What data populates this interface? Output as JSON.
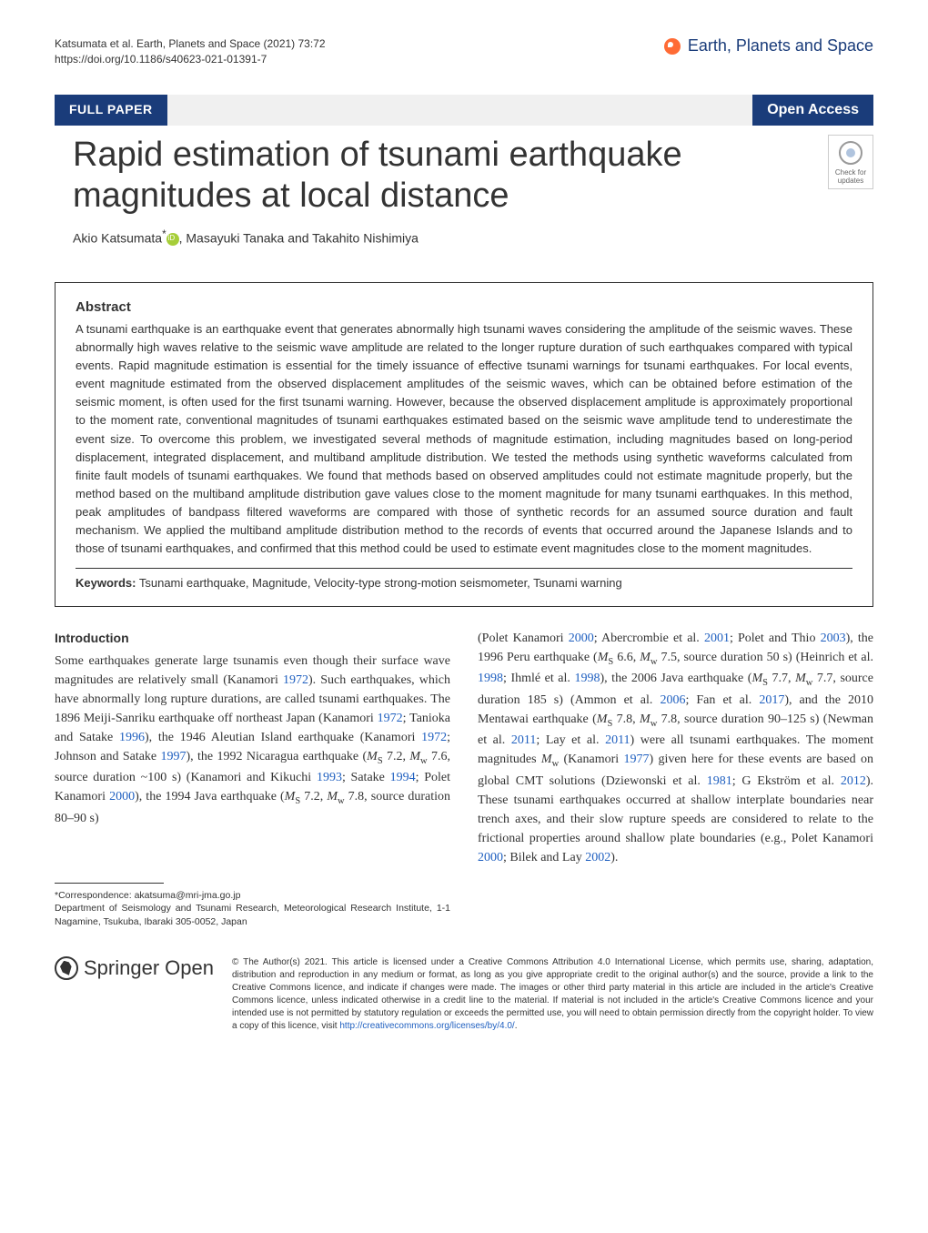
{
  "header": {
    "citation": "Katsumata et al. Earth, Planets and Space    (2021) 73:72",
    "doi": "https://doi.org/10.1186/s40623-021-01391-7",
    "journal": "Earth, Planets and Space"
  },
  "banner": {
    "article_type": "FULL PAPER",
    "open_access": "Open Access"
  },
  "title": "Rapid estimation of tsunami earthquake magnitudes at local distance",
  "check_updates_label": "Check for updates",
  "authors": {
    "a1_name": "Akio Katsumata",
    "a1_mark": "*",
    "a2_name": ", Masayuki Tanaka and Takahito Nishimiya"
  },
  "abstract": {
    "heading": "Abstract",
    "text": "A tsunami earthquake is an earthquake event that generates abnormally high tsunami waves considering the amplitude of the seismic waves. These abnormally high waves relative to the seismic wave amplitude are related to the longer rupture duration of such earthquakes compared with typical events. Rapid magnitude estimation is essential for the timely issuance of effective tsunami warnings for tsunami earthquakes. For local events, event magnitude estimated from the observed displacement amplitudes of the seismic waves, which can be obtained before estimation of the seismic moment, is often used for the first tsunami warning. However, because the observed displacement amplitude is approximately proportional to the moment rate, conventional magnitudes of tsunami earthquakes estimated based on the seismic wave amplitude tend to underestimate the event size. To overcome this problem, we investigated several methods of magnitude estimation, including magnitudes based on long-period displacement, integrated displacement, and multiband amplitude distribution. We tested the methods using synthetic waveforms calculated from finite fault models of tsunami earthquakes. We found that methods based on observed amplitudes could not estimate magnitude properly, but the method based on the multiband amplitude distribution gave values close to the moment magnitude for many tsunami earthquakes. In this method, peak amplitudes of bandpass filtered waveforms are compared with those of synthetic records for an assumed source duration and fault mechanism. We applied the multiband amplitude distribution method to the records of events that occurred around the Japanese Islands and to those of tsunami earthquakes, and confirmed that this method could be used to estimate event magnitudes close to the moment magnitudes.",
    "keywords_label": "Keywords:",
    "keywords": "Tsunami earthquake, Magnitude, Velocity-type strong-motion seismometer, Tsunami warning"
  },
  "body": {
    "intro_heading": "Introduction",
    "col1_p1a": "Some earthquakes generate large tsunamis even though their surface wave magnitudes are relatively small (Kanamori ",
    "col1_r1": "1972",
    "col1_p1b": "). Such earthquakes, which have abnormally long rupture durations, are called tsunami earthquakes. The 1896 Meiji-Sanriku earthquake off northeast Japan (Kanamori ",
    "col1_r2": "1972",
    "col1_p1c": "; Tanioka and Satake ",
    "col1_r3": "1996",
    "col1_p1d": "), the 1946 Aleutian Island earthquake (Kanamori ",
    "col1_r4": "1972",
    "col1_p1e": "; Johnson and Satake ",
    "col1_r5": "1997",
    "col1_p1f": "), the 1992 Nicaragua earthquake (",
    "col1_ms1": "M",
    "col1_ms1sub": "S",
    "col1_ms1v": " 7.2, ",
    "col1_mw1": "M",
    "col1_mw1sub": "w",
    "col1_mw1v": " 7.6, source duration ~100 s) (Kanamori and Kikuchi ",
    "col1_r6": "1993",
    "col1_p1g": "; Satake ",
    "col1_r7": "1994",
    "col1_p1h": "; Polet Kanamori ",
    "col1_r8": "2000",
    "col1_p1i": "), the 1994 Java earthquake (",
    "col1_ms2v": " 7.2, ",
    "col1_mw2v": " 7.8, source duration 80–90 s)",
    "col2_p1a": "(Polet Kanamori ",
    "col2_r1": "2000",
    "col2_p1b": "; Abercrombie et al. ",
    "col2_r2": "2001",
    "col2_p1c": "; Polet and Thio ",
    "col2_r3": "2003",
    "col2_p1d": "), the 1996 Peru earthquake (",
    "col2_v1": " 6.6, ",
    "col2_v2": " 7.5, source duration 50 s) (Heinrich et al. ",
    "col2_r4": "1998",
    "col2_p1e": "; Ihmlé et al. ",
    "col2_r5": "1998",
    "col2_p1f": "), the 2006 Java earthquake (",
    "col2_v3": " 7.7, ",
    "col2_v4": " 7.7, source duration 185 s) (Ammon et al. ",
    "col2_r6": "2006",
    "col2_p1g": "; Fan et al. ",
    "col2_r7": "2017",
    "col2_p1h": "), and the 2010 Mentawai earthquake (",
    "col2_v5": " 7.8, ",
    "col2_v6": " 7.8, source duration 90–125 s) (Newman et al. ",
    "col2_r8": "2011",
    "col2_p1i": "; Lay et al. ",
    "col2_r9": "2011",
    "col2_p1j": ") were all tsunami earthquakes. The moment magnitudes ",
    "col2_p1k": " (Kanamori ",
    "col2_r10": "1977",
    "col2_p1l": ") given here for these events are based on global CMT solutions (Dziewonski et al. ",
    "col2_r11": "1981",
    "col2_p1m": "; G Ekström et al. ",
    "col2_r12": "2012",
    "col2_p1n": "). These tsunami earthquakes occurred at shallow interplate boundaries near trench axes, and their slow rupture speeds are considered to relate to the frictional properties around shallow plate boundaries (e.g., Polet Kanamori ",
    "col2_r13": "2000",
    "col2_p1o": "; Bilek and Lay ",
    "col2_r14": "2002",
    "col2_p1p": ")."
  },
  "footnote": {
    "correspondence_label": "*Correspondence:",
    "correspondence_email": "akatsuma@mri-jma.go.jp",
    "affiliation": "Department of Seismology and Tsunami Research, Meteorological Research Institute, 1-1 Nagamine, Tsukuba, Ibaraki 305-0052, Japan"
  },
  "footer": {
    "springer_text": "Springer",
    "springer_open": "Open",
    "license_a": "© The Author(s) 2021. This article is licensed under a Creative Commons Attribution 4.0 International License, which permits use, sharing, adaptation, distribution and reproduction in any medium or format, as long as you give appropriate credit to the original author(s) and the source, provide a link to the Creative Commons licence, and indicate if changes were made. The images or other third party material in this article are included in the article's Creative Commons licence, unless indicated otherwise in a credit line to the material. If material is not included in the article's Creative Commons licence and your intended use is not permitted by statutory regulation or exceeds the permitted use, you will need to obtain permission directly from the copyright holder. To view a copy of this licence, visit ",
    "license_url": "http://creativecommons.org/licenses/by/4.0/",
    "license_b": "."
  },
  "colors": {
    "brand_blue": "#1a3c7a",
    "link_blue": "#2060c0",
    "orange": "#ff6b35",
    "orcid_green": "#a6ce39"
  },
  "typography": {
    "title_fontsize": 38,
    "body_fontsize": 14,
    "abstract_fontsize": 13,
    "footnote_fontsize": 10.5,
    "license_fontsize": 10
  }
}
